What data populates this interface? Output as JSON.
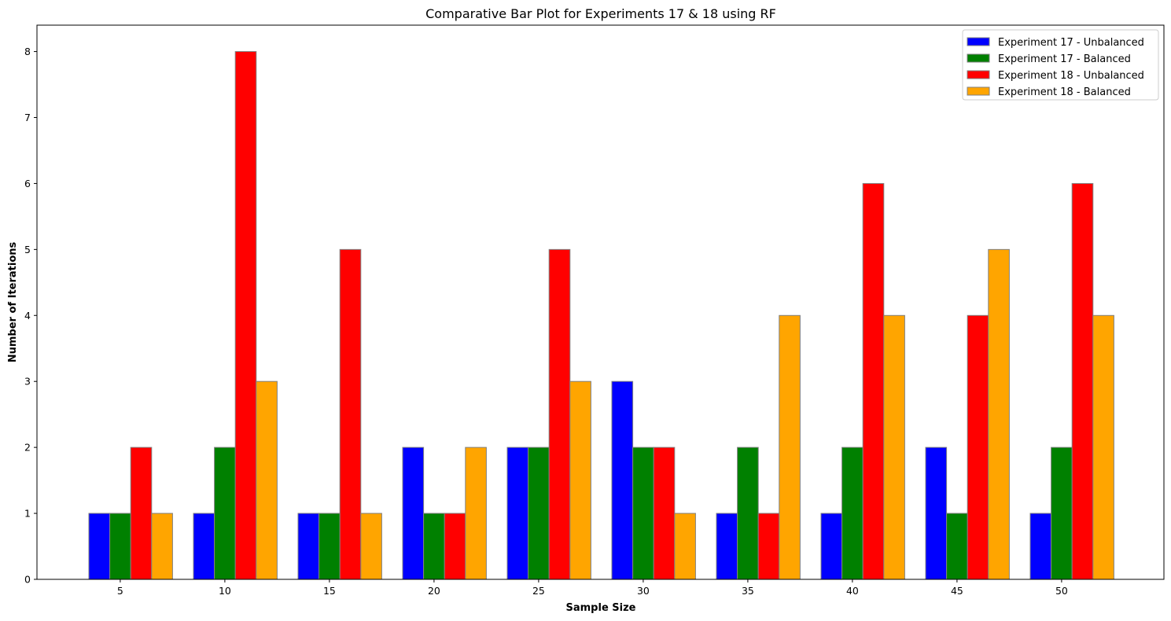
{
  "chart_data": {
    "type": "bar",
    "title": "Comparative Bar Plot for Experiments 17 & 18 using RF",
    "xlabel": "Sample Size",
    "ylabel": "Number of Iterations",
    "categories": [
      "5",
      "10",
      "15",
      "20",
      "25",
      "30",
      "35",
      "40",
      "45",
      "50"
    ],
    "ylim": [
      0,
      8.4
    ],
    "yticks": [
      0,
      1,
      2,
      3,
      4,
      5,
      6,
      7,
      8
    ],
    "grid": false,
    "legend_position": "top-right",
    "bar_edge_color": "#808080",
    "series": [
      {
        "name": "Experiment 17 - Unbalanced",
        "color": "#0000ff",
        "values": [
          1,
          1,
          1,
          2,
          2,
          3,
          1,
          1,
          2,
          1
        ]
      },
      {
        "name": "Experiment 17 - Balanced",
        "color": "#008000",
        "values": [
          1,
          2,
          1,
          1,
          2,
          2,
          2,
          2,
          1,
          2
        ]
      },
      {
        "name": "Experiment 18 - Unbalanced",
        "color": "#ff0000",
        "values": [
          2,
          8,
          5,
          1,
          5,
          2,
          1,
          6,
          4,
          6
        ]
      },
      {
        "name": "Experiment 18 - Balanced",
        "color": "#ffa500",
        "values": [
          1,
          3,
          1,
          2,
          3,
          1,
          4,
          4,
          5,
          4
        ]
      }
    ]
  }
}
